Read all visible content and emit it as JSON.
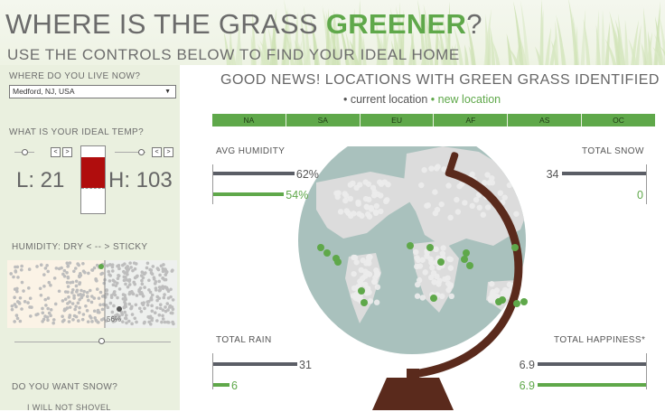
{
  "header": {
    "title_main": "WHERE IS THE GRASS ",
    "title_accent": "GREENER",
    "title_end": "?",
    "subtitle": "USE THE CONTROLS BELOW TO FIND YOUR IDEAL HOME"
  },
  "sidebar": {
    "location_label": "WHERE DO YOU LIVE NOW?",
    "location_value": "Medford, NJ, USA",
    "temp_label": "WHAT IS YOUR IDEAL TEMP?",
    "low_text": "L: 21",
    "high_text": "H: 103",
    "step_left": "<",
    "step_right": ">",
    "humidity_label": "HUMIDITY: DRY < -- > STICKY",
    "humidity_marker": "56%",
    "humidity_slider_fraction": 0.56,
    "snow_label": "DO YOU WANT SNOW?",
    "snow_option": "I WILL NOT SHOVEL"
  },
  "main": {
    "title": "GOOD NEWS! LOCATIONS WITH GREEN GRASS IDENTIFIED",
    "legend_current": "• current location",
    "legend_new": "• new location",
    "regions": [
      "NA",
      "SA",
      "EU",
      "AF",
      "AS",
      "OC"
    ],
    "metrics": {
      "humidity": {
        "label": "AVG HUMIDITY",
        "current": "62%",
        "new": "54%",
        "current_value": 62,
        "new_value": 54
      },
      "snow": {
        "label": "TOTAL SNOW",
        "current": "34",
        "new": "0",
        "current_value": 34,
        "new_value": 0
      },
      "rain": {
        "label": "TOTAL RAIN",
        "current": "31",
        "new": "6",
        "current_value": 31,
        "new_value": 6
      },
      "happiness": {
        "label": "TOTAL HAPPINESS*",
        "current": "6.9",
        "new": "6.9",
        "current_value": 6.9,
        "new_value": 6.9
      }
    }
  },
  "colors": {
    "accent_green": "#5fa84a",
    "bar_gray": "#5b5e66",
    "thermo_red": "#b00d0d",
    "globe_brown": "#5a2a1c",
    "ocean": "#a9c1bd"
  }
}
